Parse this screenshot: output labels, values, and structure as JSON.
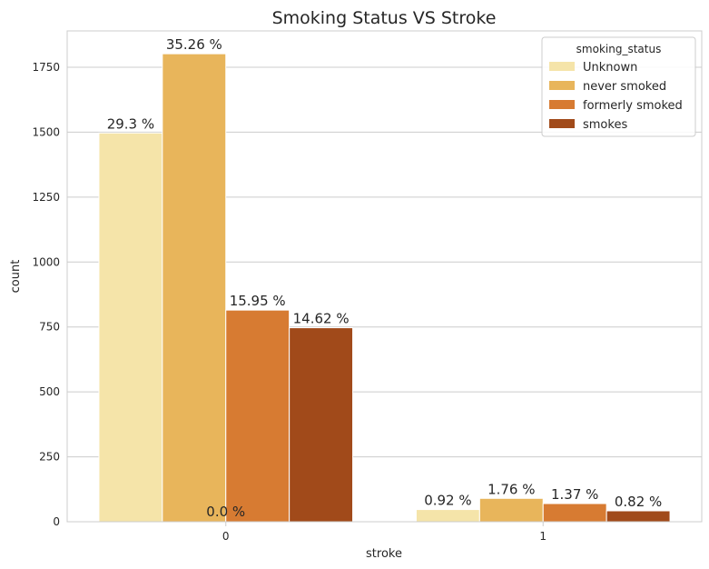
{
  "chart_data": {
    "type": "bar",
    "title": "Smoking Status VS Stroke",
    "xlabel": "stroke",
    "ylabel": "count",
    "categories": [
      "0",
      "1"
    ],
    "ylim": [
      0,
      1890
    ],
    "yticks": [
      0,
      250,
      500,
      750,
      1000,
      1250,
      1500,
      1750
    ],
    "grid": "horizontal",
    "legend": {
      "title": "smoking_status",
      "placement": "top-right"
    },
    "series": [
      {
        "name": "Unknown",
        "color": "#f5e4a9",
        "values": [
          1497,
          47
        ],
        "labels": [
          "29.3 %",
          "0.92 %"
        ]
      },
      {
        "name": "never smoked",
        "color": "#e8b55b",
        "values": [
          1802,
          90
        ],
        "labels": [
          "35.26 %",
          "1.76 %"
        ]
      },
      {
        "name": "formerly smoked",
        "color": "#d77b32",
        "values": [
          815,
          70
        ],
        "labels": [
          "15.95 %",
          "1.37 %"
        ]
      },
      {
        "name": "smokes",
        "color": "#a14a1a",
        "values": [
          747,
          42
        ],
        "labels": [
          "14.62 %",
          "0.82 %"
        ]
      }
    ],
    "annotations": [
      "0.0 %"
    ]
  }
}
